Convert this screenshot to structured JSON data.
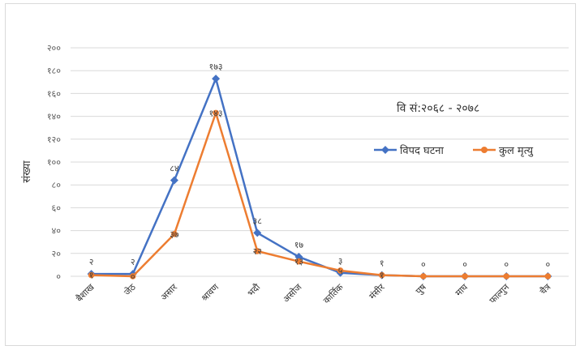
{
  "chart_data": {
    "type": "line",
    "title": "",
    "annotation": "वि सं:२०६८ - २०७८",
    "xlabel": "",
    "ylabel": "संख्या",
    "ylim": [
      0,
      200
    ],
    "yticks": [
      0,
      20,
      40,
      60,
      80,
      100,
      120,
      140,
      160,
      180,
      200
    ],
    "ytick_labels": [
      "०",
      "२०",
      "४०",
      "६०",
      "८०",
      "१००",
      "१२०",
      "१४०",
      "१६०",
      "१८०",
      "२००"
    ],
    "grid": true,
    "legend_position": "right",
    "categories": [
      "बैशाख",
      "जेठ",
      "असार",
      "श्रावण",
      "भदौ",
      "असोज",
      "कार्तिक",
      "मंसीर",
      "पुष",
      "माघ",
      "फाल्गुन",
      "चैत्र"
    ],
    "series": [
      {
        "name": "विपद घटना",
        "color": "#4472C4",
        "marker": "diamond",
        "values": [
          2,
          2,
          84,
          173,
          38,
          17,
          3,
          1,
          0,
          0,
          0,
          0
        ],
        "labels": [
          "२",
          "२",
          "८४",
          "१७३",
          "३८",
          "१७",
          "३",
          "१",
          "०",
          "०",
          "०",
          "०"
        ]
      },
      {
        "name": "कुल मृत्यु",
        "color": "#ED7D31",
        "marker": "circle",
        "values": [
          1,
          0,
          37,
          143,
          22,
          13,
          5,
          1,
          0,
          0,
          0,
          0
        ],
        "labels": [
          "१",
          "०",
          "३७",
          "१४३",
          "२२",
          "१३",
          "५",
          "१",
          "",
          "",
          "",
          ""
        ]
      }
    ]
  }
}
